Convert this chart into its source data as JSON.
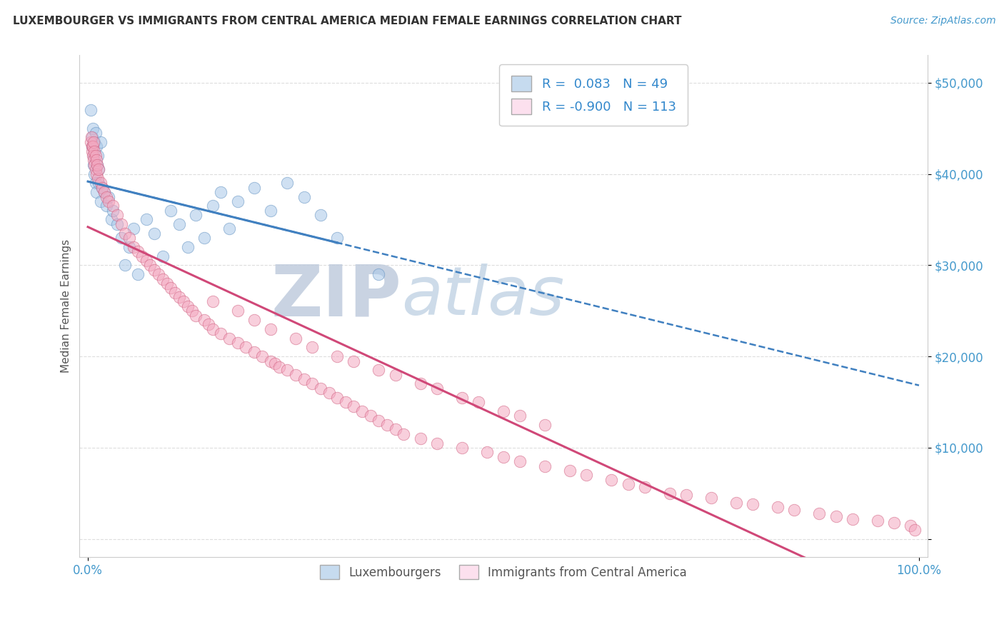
{
  "title": "LUXEMBOURGER VS IMMIGRANTS FROM CENTRAL AMERICA MEDIAN FEMALE EARNINGS CORRELATION CHART",
  "source": "Source: ZipAtlas.com",
  "ylabel": "Median Female Earnings",
  "xlim": [
    -1,
    101
  ],
  "ylim": [
    -2000,
    53000
  ],
  "yticks": [
    0,
    10000,
    20000,
    30000,
    40000,
    50000
  ],
  "ytick_labels": [
    "",
    "$10,000",
    "$20,000",
    "$30,000",
    "$40,000",
    "$50,000"
  ],
  "xtick_vals": [
    0,
    100
  ],
  "xtick_labels": [
    "0.0%",
    "100.0%"
  ],
  "legend_R1": "0.083",
  "legend_N1": "49",
  "legend_R2": "-0.900",
  "legend_N2": "113",
  "blue_color": "#a8c8e8",
  "pink_color": "#f4a8c0",
  "blue_edge_color": "#6090c0",
  "pink_edge_color": "#d06080",
  "blue_line_color": "#4080c0",
  "pink_line_color": "#d04878",
  "blue_fill": "#c6dbef",
  "pink_fill": "#fce0ee",
  "watermark_zip": "ZIP",
  "watermark_atlas": "atlas",
  "watermark_color_zip": "#c0ccdd",
  "watermark_color_atlas": "#b8cce0",
  "background_color": "#ffffff",
  "grid_color": "#dddddd",
  "title_color": "#333333",
  "axis_label_color": "#555555",
  "tick_label_color": "#4499cc",
  "legend_text_color": "#3388cc",
  "blue_scatter_x": [
    0.3,
    0.5,
    0.5,
    0.6,
    0.7,
    0.7,
    0.8,
    0.8,
    0.9,
    0.9,
    1.0,
    1.0,
    1.1,
    1.2,
    1.3,
    1.3,
    1.5,
    1.5,
    1.7,
    2.0,
    2.2,
    2.5,
    2.8,
    3.0,
    3.5,
    4.0,
    4.5,
    5.0,
    5.5,
    6.0,
    7.0,
    8.0,
    9.0,
    10.0,
    11.0,
    12.0,
    13.0,
    14.0,
    15.0,
    16.0,
    17.0,
    18.0,
    20.0,
    22.0,
    24.0,
    26.0,
    28.0,
    30.0,
    35.0
  ],
  "blue_scatter_y": [
    47000,
    44000,
    43000,
    45000,
    42000,
    41000,
    43500,
    40000,
    44500,
    39000,
    43000,
    38000,
    41000,
    42000,
    40500,
    39000,
    43500,
    37000,
    38500,
    38000,
    36500,
    37500,
    35000,
    36000,
    34500,
    33000,
    30000,
    32000,
    34000,
    29000,
    35000,
    33500,
    31000,
    36000,
    34500,
    32000,
    35500,
    33000,
    36500,
    38000,
    34000,
    37000,
    38500,
    36000,
    39000,
    37500,
    35500,
    33000,
    29000
  ],
  "pink_scatter_x": [
    0.3,
    0.4,
    0.5,
    0.5,
    0.6,
    0.6,
    0.7,
    0.7,
    0.8,
    0.8,
    0.9,
    0.9,
    1.0,
    1.0,
    1.1,
    1.2,
    1.3,
    1.5,
    1.7,
    2.0,
    2.2,
    2.5,
    3.0,
    3.5,
    4.0,
    4.5,
    5.0,
    5.5,
    6.0,
    6.5,
    7.0,
    7.5,
    8.0,
    8.5,
    9.0,
    9.5,
    10.0,
    10.5,
    11.0,
    11.5,
    12.0,
    12.5,
    13.0,
    14.0,
    14.5,
    15.0,
    16.0,
    17.0,
    18.0,
    19.0,
    20.0,
    21.0,
    22.0,
    22.5,
    23.0,
    24.0,
    25.0,
    26.0,
    27.0,
    28.0,
    29.0,
    30.0,
    31.0,
    32.0,
    33.0,
    34.0,
    35.0,
    36.0,
    37.0,
    38.0,
    40.0,
    42.0,
    45.0,
    48.0,
    50.0,
    52.0,
    55.0,
    58.0,
    60.0,
    63.0,
    65.0,
    67.0,
    70.0,
    72.0,
    75.0,
    78.0,
    80.0,
    83.0,
    85.0,
    88.0,
    90.0,
    92.0,
    95.0,
    97.0,
    99.0,
    15.0,
    18.0,
    20.0,
    22.0,
    25.0,
    27.0,
    30.0,
    32.0,
    35.0,
    37.0,
    40.0,
    42.0,
    45.0,
    47.0,
    50.0,
    52.0,
    55.0,
    99.5
  ],
  "pink_scatter_y": [
    43500,
    44000,
    43000,
    42500,
    43000,
    42000,
    43500,
    41500,
    42500,
    41000,
    42000,
    40500,
    41500,
    40000,
    41000,
    39500,
    40500,
    39000,
    38500,
    38000,
    37500,
    37000,
    36500,
    35500,
    34500,
    33500,
    33000,
    32000,
    31500,
    31000,
    30500,
    30000,
    29500,
    29000,
    28500,
    28000,
    27500,
    27000,
    26500,
    26000,
    25500,
    25000,
    24500,
    24000,
    23500,
    23000,
    22500,
    22000,
    21500,
    21000,
    20500,
    20000,
    19500,
    19200,
    18800,
    18500,
    18000,
    17500,
    17000,
    16500,
    16000,
    15500,
    15000,
    14500,
    14000,
    13500,
    13000,
    12500,
    12000,
    11500,
    11000,
    10500,
    10000,
    9500,
    9000,
    8500,
    8000,
    7500,
    7000,
    6500,
    6000,
    5700,
    5000,
    4800,
    4500,
    4000,
    3800,
    3500,
    3200,
    2800,
    2500,
    2200,
    2000,
    1800,
    1500,
    26000,
    25000,
    24000,
    23000,
    22000,
    21000,
    20000,
    19500,
    18500,
    18000,
    17000,
    16500,
    15500,
    15000,
    14000,
    13500,
    12500,
    1000
  ]
}
